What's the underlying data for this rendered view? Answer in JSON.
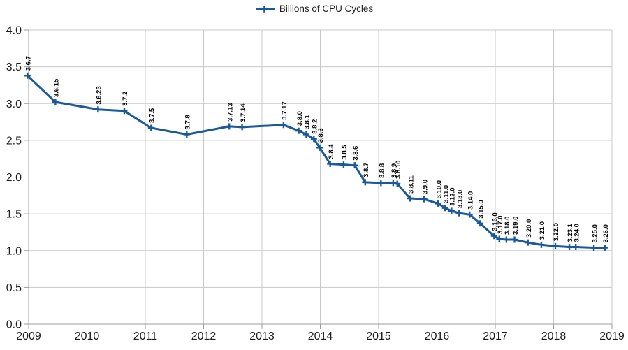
{
  "colors": {
    "series": "#1B5A99",
    "grid": "#C8C8C8",
    "axis": "#9C9C9C",
    "axis_text": "#1C1C1C",
    "point_label_text": "#000000",
    "legend_text": "#1F1F1F",
    "background": "#FFFFFF"
  },
  "legend": {
    "marker_icon": "plus-on-line-icon",
    "position": "top"
  },
  "chart_data": {
    "type": "line",
    "title": "",
    "grid": true,
    "legend_position": "top",
    "x_axis": {
      "min": 2009,
      "max": 2019,
      "tick_labels": [
        "2009",
        "2010",
        "2011",
        "2012",
        "2013",
        "2014",
        "2015",
        "2016",
        "2017",
        "2018",
        "2019"
      ]
    },
    "y_axis": {
      "min": 0.0,
      "max": 4.0,
      "step": 0.5,
      "tick_labels": [
        "0.0",
        "0.5",
        "1.0",
        "1.5",
        "2.0",
        "2.5",
        "3.0",
        "3.5",
        "4.0"
      ]
    },
    "series": [
      {
        "name": "Billions of CPU Cycles",
        "color": "#1B5A99",
        "marker": "plus",
        "points": [
          {
            "label": "3.6.7",
            "x": 2008.98,
            "y": 3.38
          },
          {
            "label": "3.6.15",
            "x": 2009.46,
            "y": 3.02
          },
          {
            "label": "3.6.23",
            "x": 2010.19,
            "y": 2.92
          },
          {
            "label": "3.7.2",
            "x": 2010.64,
            "y": 2.9
          },
          {
            "label": "3.7.5",
            "x": 2011.1,
            "y": 2.67
          },
          {
            "label": "3.7.8",
            "x": 2011.71,
            "y": 2.58
          },
          {
            "label": "3.7.13",
            "x": 2012.44,
            "y": 2.69
          },
          {
            "label": "3.7.14",
            "x": 2012.66,
            "y": 2.68
          },
          {
            "label": "3.7.17",
            "x": 2013.37,
            "y": 2.71
          },
          {
            "label": "3.8.0",
            "x": 2013.63,
            "y": 2.63
          },
          {
            "label": "3.8.1",
            "x": 2013.76,
            "y": 2.58
          },
          {
            "label": "3.8.2",
            "x": 2013.89,
            "y": 2.52
          },
          {
            "label": "3.8.3",
            "x": 2013.99,
            "y": 2.4
          },
          {
            "label": "3.8.4",
            "x": 2014.17,
            "y": 2.18
          },
          {
            "label": "3.8.5",
            "x": 2014.4,
            "y": 2.17
          },
          {
            "label": "3.8.6",
            "x": 2014.59,
            "y": 2.16
          },
          {
            "label": "3.8.7",
            "x": 2014.77,
            "y": 1.93
          },
          {
            "label": "3.8.8",
            "x": 2015.04,
            "y": 1.92
          },
          {
            "label": "3.8.9",
            "x": 2015.25,
            "y": 1.92
          },
          {
            "label": "3.8.10",
            "x": 2015.32,
            "y": 1.91
          },
          {
            "label": "3.8.11",
            "x": 2015.54,
            "y": 1.71
          },
          {
            "label": "3.9.0",
            "x": 2015.78,
            "y": 1.7
          },
          {
            "label": "3.10.0",
            "x": 2016.02,
            "y": 1.64
          },
          {
            "label": "3.11.0",
            "x": 2016.14,
            "y": 1.58
          },
          {
            "label": "3.12.0",
            "x": 2016.25,
            "y": 1.54
          },
          {
            "label": "3.13.0",
            "x": 2016.38,
            "y": 1.51
          },
          {
            "label": "3.14.0",
            "x": 2016.56,
            "y": 1.49
          },
          {
            "label": "3.15.0",
            "x": 2016.74,
            "y": 1.37
          },
          {
            "label": "3.16.0",
            "x": 2016.98,
            "y": 1.2
          },
          {
            "label": "3.17.0",
            "x": 2017.07,
            "y": 1.16
          },
          {
            "label": "3.18.0",
            "x": 2017.19,
            "y": 1.15
          },
          {
            "label": "3.19.0",
            "x": 2017.33,
            "y": 1.15
          },
          {
            "label": "3.20.0",
            "x": 2017.56,
            "y": 1.11
          },
          {
            "label": "3.21.0",
            "x": 2017.79,
            "y": 1.08
          },
          {
            "label": "3.22.0",
            "x": 2018.03,
            "y": 1.06
          },
          {
            "label": "3.23.1",
            "x": 2018.27,
            "y": 1.05
          },
          {
            "label": "3.24.0",
            "x": 2018.38,
            "y": 1.05
          },
          {
            "label": "3.25.0",
            "x": 2018.69,
            "y": 1.04
          },
          {
            "label": "3.26.0",
            "x": 2018.88,
            "y": 1.04
          }
        ]
      }
    ]
  }
}
